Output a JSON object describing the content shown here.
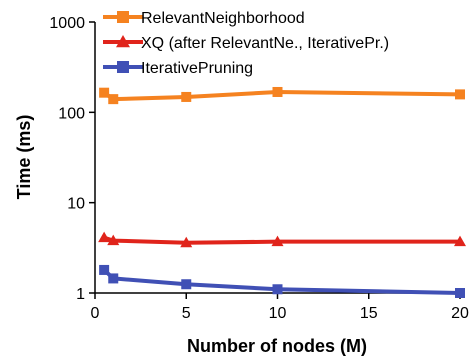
{
  "chart_data": {
    "type": "line",
    "title": "",
    "xlabel": "Number of nodes (M)",
    "ylabel": "Time (ms)",
    "x_axis": {
      "scale": "linear",
      "range": [
        0,
        20
      ],
      "ticks": [
        0,
        5,
        10,
        15,
        20
      ],
      "tick_labels": [
        "0",
        "5",
        "10",
        "15",
        "20"
      ]
    },
    "y_axis": {
      "scale": "log",
      "range": [
        1,
        1000
      ],
      "ticks": [
        1,
        10,
        100,
        1000
      ],
      "tick_labels": [
        "1",
        "10",
        "100",
        "1000"
      ]
    },
    "grid": false,
    "legend_position": "top-left",
    "series": [
      {
        "name": "RelevantNeighborhood",
        "color": "#f58220",
        "marker": "square",
        "points": [
          {
            "x": 0.5,
            "y": 165
          },
          {
            "x": 1,
            "y": 140
          },
          {
            "x": 5,
            "y": 148
          },
          {
            "x": 10,
            "y": 168
          },
          {
            "x": 20,
            "y": 158
          }
        ]
      },
      {
        "name": "XQ (after RelevantNe., IterativePr.)",
        "color": "#e0241b",
        "marker": "triangle",
        "points": [
          {
            "x": 0.5,
            "y": 4.1
          },
          {
            "x": 1,
            "y": 3.8
          },
          {
            "x": 5,
            "y": 3.6
          },
          {
            "x": 10,
            "y": 3.7
          },
          {
            "x": 20,
            "y": 3.7
          }
        ]
      },
      {
        "name": "IterativePruning",
        "color": "#4050b5",
        "marker": "square",
        "points": [
          {
            "x": 0.5,
            "y": 1.8
          },
          {
            "x": 1,
            "y": 1.45
          },
          {
            "x": 5,
            "y": 1.25
          },
          {
            "x": 10,
            "y": 1.1
          },
          {
            "x": 20,
            "y": 1.0
          }
        ]
      }
    ]
  }
}
